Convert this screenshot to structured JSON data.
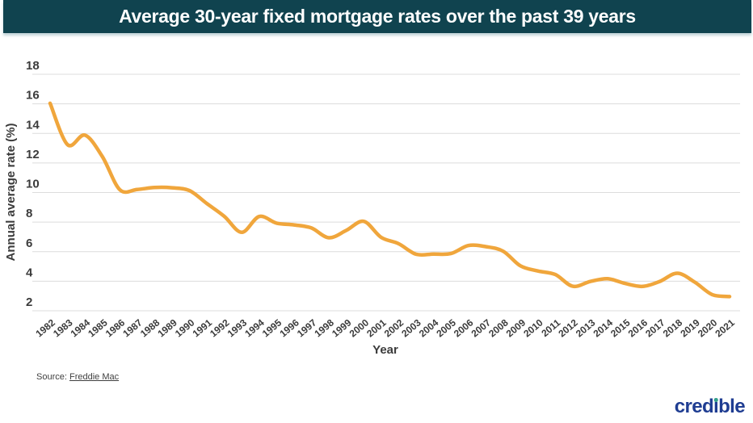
{
  "header": {
    "title": "Average 30-year fixed mortgage rates over the past 39 years",
    "bg_color": "#10434F"
  },
  "chart_data": {
    "type": "line",
    "title": "Average 30-year fixed mortgage rates over the past 39 years",
    "xlabel": "Year",
    "ylabel": "Annual average rate (%)",
    "x": [
      1982,
      1983,
      1984,
      1985,
      1986,
      1987,
      1988,
      1989,
      1990,
      1991,
      1992,
      1993,
      1994,
      1995,
      1996,
      1997,
      1998,
      1999,
      2000,
      2001,
      2002,
      2003,
      2004,
      2005,
      2006,
      2007,
      2008,
      2009,
      2010,
      2011,
      2012,
      2013,
      2014,
      2015,
      2016,
      2017,
      2018,
      2019,
      2020,
      2021
    ],
    "series": [
      {
        "name": "30-year fixed mortgage rate",
        "color": "#F0A63C",
        "values": [
          16.04,
          13.24,
          13.88,
          12.43,
          10.19,
          10.21,
          10.34,
          10.32,
          10.13,
          9.25,
          8.39,
          7.31,
          8.38,
          7.93,
          7.81,
          7.6,
          6.94,
          7.44,
          8.05,
          6.97,
          6.54,
          5.83,
          5.84,
          5.87,
          6.41,
          6.34,
          6.03,
          5.04,
          4.69,
          4.45,
          3.66,
          3.98,
          4.17,
          3.85,
          3.65,
          3.99,
          4.54,
          3.94,
          3.1,
          2.96
        ]
      }
    ],
    "ylim": [
      2,
      18
    ],
    "yticks": [
      2,
      4,
      6,
      8,
      10,
      12,
      14,
      16,
      18
    ],
    "grid": true,
    "grid_color": "#DCDCDC",
    "tick_color": "#3B3B3B",
    "legend": "none"
  },
  "footer": {
    "source_prefix": "Source: ",
    "source_link": "Freddie Mac",
    "logo": {
      "part1": "cred",
      "i": "ı",
      "part2": "ble",
      "text_color": "#1F3D92",
      "dot_color": "#35A08C"
    }
  }
}
